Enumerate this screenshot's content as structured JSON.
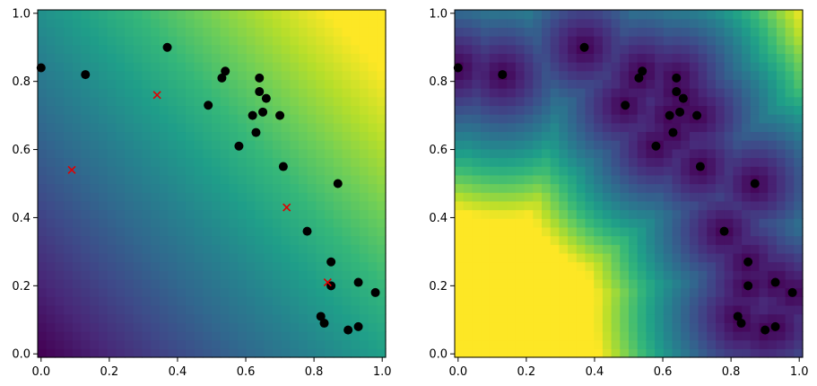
{
  "chart_data": [
    {
      "type": "heatmap",
      "title": "",
      "xlabel": "",
      "ylabel": "",
      "xlim": [
        -0.01,
        1.01
      ],
      "ylim": [
        -0.01,
        1.01
      ],
      "grid": false,
      "colormap": "viridis",
      "background": "plane increasing from bottom-left to top-right",
      "xticks": [
        "0.0",
        "0.2",
        "0.4",
        "0.6",
        "0.8",
        "1.0"
      ],
      "yticks": [
        "0.0",
        "0.2",
        "0.4",
        "0.6",
        "0.8",
        "1.0"
      ],
      "series": [
        {
          "marker": "circle",
          "color": "#000000",
          "points": [
            [
              0.0,
              0.84
            ],
            [
              0.13,
              0.82
            ],
            [
              0.37,
              0.9
            ],
            [
              0.49,
              0.73
            ],
            [
              0.53,
              0.81
            ],
            [
              0.54,
              0.83
            ],
            [
              0.58,
              0.61
            ],
            [
              0.62,
              0.7
            ],
            [
              0.63,
              0.65
            ],
            [
              0.64,
              0.81
            ],
            [
              0.64,
              0.77
            ],
            [
              0.65,
              0.71
            ],
            [
              0.66,
              0.75
            ],
            [
              0.7,
              0.7
            ],
            [
              0.71,
              0.55
            ],
            [
              0.78,
              0.36
            ],
            [
              0.82,
              0.11
            ],
            [
              0.83,
              0.09
            ],
            [
              0.85,
              0.27
            ],
            [
              0.85,
              0.2
            ],
            [
              0.87,
              0.5
            ],
            [
              0.9,
              0.07
            ],
            [
              0.93,
              0.21
            ],
            [
              0.93,
              0.08
            ],
            [
              0.98,
              0.18
            ]
          ]
        },
        {
          "marker": "x",
          "color": "#e00000",
          "points": [
            [
              0.09,
              0.54
            ],
            [
              0.34,
              0.76
            ],
            [
              0.72,
              0.43
            ],
            [
              0.84,
              0.21
            ]
          ]
        }
      ]
    },
    {
      "type": "heatmap",
      "title": "",
      "xlabel": "",
      "ylabel": "",
      "xlim": [
        -0.01,
        1.01
      ],
      "ylim": [
        -0.01,
        1.01
      ],
      "grid": false,
      "colormap": "viridis",
      "background": "distance field, dark along the point curve, bright in bottom-left and top-right corners",
      "xticks": [
        "0.0",
        "0.2",
        "0.4",
        "0.6",
        "0.8",
        "1.0"
      ],
      "yticks": [
        "0.0",
        "0.2",
        "0.4",
        "0.6",
        "0.8",
        "1.0"
      ],
      "series": [
        {
          "marker": "circle",
          "color": "#000000",
          "points": [
            [
              0.0,
              0.84
            ],
            [
              0.13,
              0.82
            ],
            [
              0.37,
              0.9
            ],
            [
              0.49,
              0.73
            ],
            [
              0.53,
              0.81
            ],
            [
              0.54,
              0.83
            ],
            [
              0.58,
              0.61
            ],
            [
              0.62,
              0.7
            ],
            [
              0.63,
              0.65
            ],
            [
              0.64,
              0.81
            ],
            [
              0.64,
              0.77
            ],
            [
              0.65,
              0.71
            ],
            [
              0.66,
              0.75
            ],
            [
              0.7,
              0.7
            ],
            [
              0.71,
              0.55
            ],
            [
              0.78,
              0.36
            ],
            [
              0.82,
              0.11
            ],
            [
              0.83,
              0.09
            ],
            [
              0.85,
              0.27
            ],
            [
              0.85,
              0.2
            ],
            [
              0.87,
              0.5
            ],
            [
              0.9,
              0.07
            ],
            [
              0.93,
              0.21
            ],
            [
              0.93,
              0.08
            ],
            [
              0.98,
              0.18
            ]
          ]
        }
      ]
    }
  ]
}
